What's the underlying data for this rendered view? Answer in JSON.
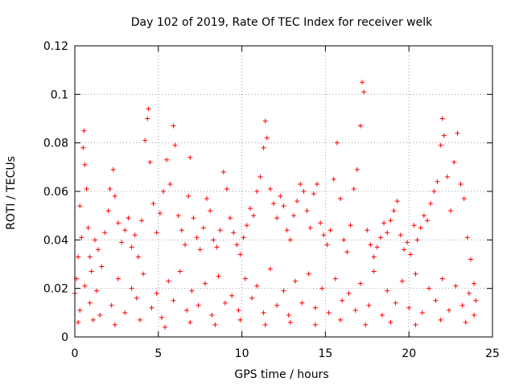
{
  "chart_data": {
    "type": "scatter",
    "title": "Day 102 of 2019, Rate Of TEC Index for receiver welk",
    "xlabel": "GPS time / hours",
    "ylabel": "ROTI / TECUs",
    "xlim": [
      0,
      25
    ],
    "ylim": [
      0,
      0.12
    ],
    "grid": true,
    "marker": "plus",
    "color": "#ff0000",
    "x_ticks": [
      "0",
      "5",
      "10",
      "15",
      "20",
      "25"
    ],
    "y_ticks": [
      "0",
      "0.02",
      "0.04",
      "0.06",
      "0.08",
      "0.1",
      "0.12"
    ],
    "series": [
      {
        "name": "ROTI",
        "points": [
          [
            0.0,
            0.018
          ],
          [
            0.1,
            0.024
          ],
          [
            0.2,
            0.033
          ],
          [
            0.3,
            0.054
          ],
          [
            0.4,
            0.041
          ],
          [
            0.5,
            0.078
          ],
          [
            0.55,
            0.085
          ],
          [
            0.6,
            0.071
          ],
          [
            0.7,
            0.061
          ],
          [
            0.8,
            0.045
          ],
          [
            0.9,
            0.033
          ],
          [
            1.0,
            0.027
          ],
          [
            1.2,
            0.04
          ],
          [
            1.4,
            0.036
          ],
          [
            1.6,
            0.029
          ],
          [
            1.8,
            0.043
          ],
          [
            2.0,
            0.052
          ],
          [
            2.1,
            0.061
          ],
          [
            2.3,
            0.069
          ],
          [
            2.4,
            0.058
          ],
          [
            2.6,
            0.047
          ],
          [
            2.8,
            0.039
          ],
          [
            3.0,
            0.044
          ],
          [
            3.2,
            0.049
          ],
          [
            3.4,
            0.037
          ],
          [
            3.6,
            0.042
          ],
          [
            3.8,
            0.033
          ],
          [
            4.0,
            0.048
          ],
          [
            4.2,
            0.081
          ],
          [
            4.35,
            0.09
          ],
          [
            4.4,
            0.094
          ],
          [
            4.5,
            0.072
          ],
          [
            4.7,
            0.055
          ],
          [
            4.9,
            0.043
          ],
          [
            5.1,
            0.051
          ],
          [
            5.3,
            0.06
          ],
          [
            5.5,
            0.073
          ],
          [
            5.7,
            0.063
          ],
          [
            5.9,
            0.087
          ],
          [
            6.0,
            0.079
          ],
          [
            6.2,
            0.05
          ],
          [
            6.4,
            0.044
          ],
          [
            6.6,
            0.038
          ],
          [
            6.8,
            0.058
          ],
          [
            6.9,
            0.074
          ],
          [
            7.1,
            0.049
          ],
          [
            7.3,
            0.041
          ],
          [
            7.5,
            0.036
          ],
          [
            7.7,
            0.045
          ],
          [
            7.9,
            0.057
          ],
          [
            8.1,
            0.052
          ],
          [
            8.3,
            0.04
          ],
          [
            8.5,
            0.037
          ],
          [
            8.7,
            0.044
          ],
          [
            8.9,
            0.068
          ],
          [
            9.1,
            0.061
          ],
          [
            9.3,
            0.049
          ],
          [
            9.5,
            0.043
          ],
          [
            9.7,
            0.038
          ],
          [
            9.9,
            0.034
          ],
          [
            10.1,
            0.041
          ],
          [
            10.3,
            0.046
          ],
          [
            10.5,
            0.053
          ],
          [
            10.7,
            0.05
          ],
          [
            10.9,
            0.06
          ],
          [
            11.1,
            0.066
          ],
          [
            11.3,
            0.078
          ],
          [
            11.4,
            0.089
          ],
          [
            11.5,
            0.082
          ],
          [
            11.7,
            0.061
          ],
          [
            11.9,
            0.055
          ],
          [
            12.1,
            0.049
          ],
          [
            12.3,
            0.058
          ],
          [
            12.5,
            0.054
          ],
          [
            12.7,
            0.044
          ],
          [
            12.9,
            0.04
          ],
          [
            13.1,
            0.05
          ],
          [
            13.3,
            0.056
          ],
          [
            13.5,
            0.063
          ],
          [
            13.7,
            0.06
          ],
          [
            13.9,
            0.052
          ],
          [
            14.1,
            0.045
          ],
          [
            14.3,
            0.059
          ],
          [
            14.5,
            0.063
          ],
          [
            14.7,
            0.047
          ],
          [
            14.9,
            0.042
          ],
          [
            15.1,
            0.038
          ],
          [
            15.3,
            0.044
          ],
          [
            15.5,
            0.065
          ],
          [
            15.7,
            0.08
          ],
          [
            15.9,
            0.057
          ],
          [
            16.1,
            0.04
          ],
          [
            16.3,
            0.035
          ],
          [
            16.5,
            0.046
          ],
          [
            16.7,
            0.061
          ],
          [
            16.9,
            0.069
          ],
          [
            17.1,
            0.087
          ],
          [
            17.2,
            0.105
          ],
          [
            17.3,
            0.101
          ],
          [
            17.5,
            0.044
          ],
          [
            17.7,
            0.038
          ],
          [
            17.9,
            0.033
          ],
          [
            18.1,
            0.037
          ],
          [
            18.3,
            0.041
          ],
          [
            18.5,
            0.047
          ],
          [
            18.7,
            0.043
          ],
          [
            18.9,
            0.048
          ],
          [
            19.1,
            0.052
          ],
          [
            19.3,
            0.056
          ],
          [
            19.5,
            0.042
          ],
          [
            19.7,
            0.036
          ],
          [
            19.9,
            0.039
          ],
          [
            20.1,
            0.034
          ],
          [
            20.3,
            0.046
          ],
          [
            20.5,
            0.04
          ],
          [
            20.7,
            0.045
          ],
          [
            20.9,
            0.05
          ],
          [
            21.1,
            0.048
          ],
          [
            21.3,
            0.055
          ],
          [
            21.5,
            0.06
          ],
          [
            21.7,
            0.064
          ],
          [
            21.9,
            0.079
          ],
          [
            22.0,
            0.09
          ],
          [
            22.1,
            0.083
          ],
          [
            22.3,
            0.066
          ],
          [
            22.5,
            0.052
          ],
          [
            22.7,
            0.072
          ],
          [
            22.9,
            0.084
          ],
          [
            23.1,
            0.063
          ],
          [
            23.3,
            0.057
          ],
          [
            23.5,
            0.041
          ],
          [
            23.7,
            0.032
          ],
          [
            23.9,
            0.022
          ],
          [
            24.0,
            0.015
          ],
          [
            0.3,
            0.011
          ],
          [
            0.9,
            0.014
          ],
          [
            1.5,
            0.009
          ],
          [
            2.2,
            0.013
          ],
          [
            3.0,
            0.01
          ],
          [
            3.7,
            0.016
          ],
          [
            4.6,
            0.012
          ],
          [
            5.2,
            0.008
          ],
          [
            5.9,
            0.015
          ],
          [
            6.7,
            0.011
          ],
          [
            7.4,
            0.013
          ],
          [
            8.2,
            0.009
          ],
          [
            9.0,
            0.014
          ],
          [
            9.8,
            0.011
          ],
          [
            10.6,
            0.016
          ],
          [
            11.3,
            0.01
          ],
          [
            12.1,
            0.013
          ],
          [
            12.8,
            0.009
          ],
          [
            13.6,
            0.014
          ],
          [
            14.4,
            0.012
          ],
          [
            15.2,
            0.01
          ],
          [
            16.0,
            0.015
          ],
          [
            16.8,
            0.011
          ],
          [
            17.6,
            0.013
          ],
          [
            18.4,
            0.009
          ],
          [
            19.2,
            0.014
          ],
          [
            20.0,
            0.012
          ],
          [
            20.8,
            0.01
          ],
          [
            21.6,
            0.015
          ],
          [
            22.4,
            0.011
          ],
          [
            23.2,
            0.013
          ],
          [
            23.9,
            0.009
          ],
          [
            0.6,
            0.021
          ],
          [
            1.3,
            0.019
          ],
          [
            2.6,
            0.024
          ],
          [
            3.4,
            0.02
          ],
          [
            4.1,
            0.026
          ],
          [
            4.9,
            0.018
          ],
          [
            5.6,
            0.023
          ],
          [
            6.3,
            0.027
          ],
          [
            7.0,
            0.019
          ],
          [
            7.8,
            0.022
          ],
          [
            8.6,
            0.025
          ],
          [
            9.4,
            0.017
          ],
          [
            10.2,
            0.024
          ],
          [
            10.9,
            0.021
          ],
          [
            11.7,
            0.028
          ],
          [
            12.5,
            0.019
          ],
          [
            13.2,
            0.023
          ],
          [
            14.0,
            0.026
          ],
          [
            14.8,
            0.02
          ],
          [
            15.6,
            0.024
          ],
          [
            16.4,
            0.018
          ],
          [
            17.1,
            0.022
          ],
          [
            17.9,
            0.027
          ],
          [
            18.7,
            0.019
          ],
          [
            19.6,
            0.023
          ],
          [
            20.4,
            0.026
          ],
          [
            21.2,
            0.02
          ],
          [
            22.0,
            0.024
          ],
          [
            22.8,
            0.021
          ],
          [
            23.6,
            0.018
          ],
          [
            0.2,
            0.006
          ],
          [
            1.1,
            0.007
          ],
          [
            2.4,
            0.005
          ],
          [
            3.9,
            0.007
          ],
          [
            5.4,
            0.004
          ],
          [
            6.9,
            0.006
          ],
          [
            8.4,
            0.005
          ],
          [
            9.9,
            0.007
          ],
          [
            11.4,
            0.005
          ],
          [
            12.9,
            0.006
          ],
          [
            14.4,
            0.005
          ],
          [
            15.9,
            0.007
          ],
          [
            17.4,
            0.005
          ],
          [
            18.9,
            0.006
          ],
          [
            20.4,
            0.005
          ],
          [
            21.9,
            0.007
          ],
          [
            23.4,
            0.006
          ]
        ]
      }
    ]
  }
}
